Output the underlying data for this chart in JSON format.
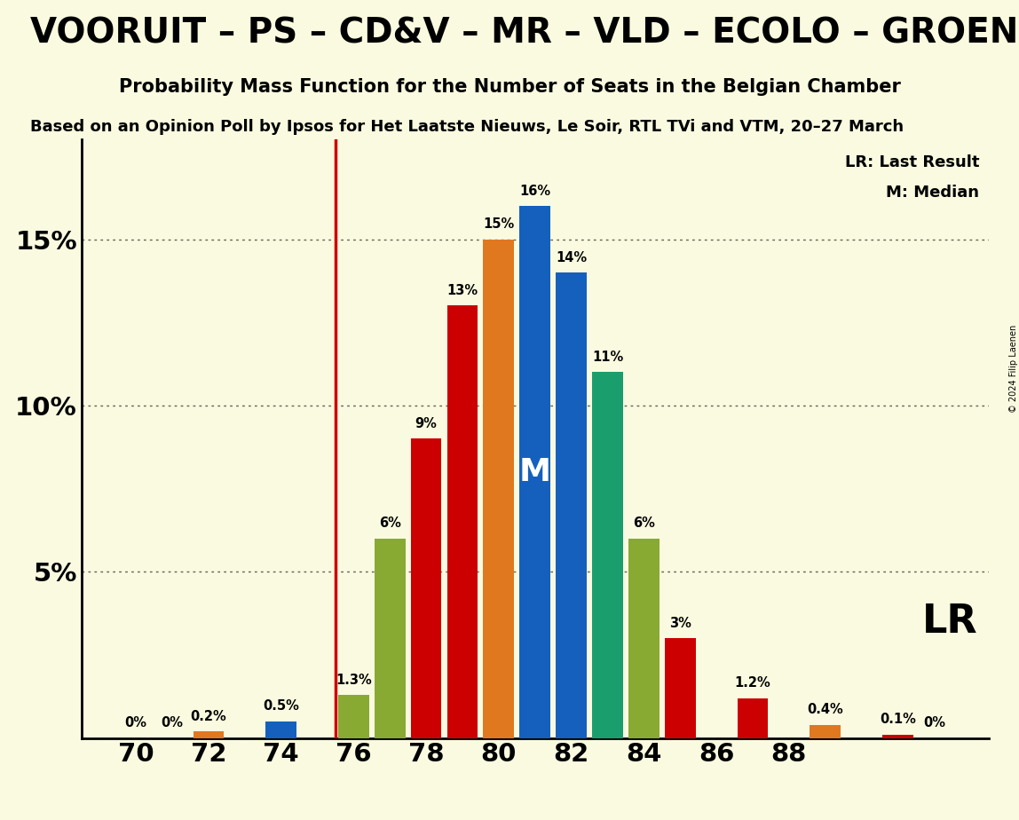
{
  "all_bars": [
    {
      "seat": 70,
      "prob": 0.0,
      "color": "#E07820",
      "label": "0%"
    },
    {
      "seat": 71,
      "prob": 0.0,
      "color": "#1560BD",
      "label": "0%"
    },
    {
      "seat": 72,
      "prob": 0.2,
      "color": "#E07820",
      "label": "0.2%"
    },
    {
      "seat": 73,
      "prob": 0.0,
      "color": "#1560BD",
      "label": ""
    },
    {
      "seat": 74,
      "prob": 0.5,
      "color": "#1560BD",
      "label": "0.5%"
    },
    {
      "seat": 75,
      "prob": 0.0,
      "color": "#88AA33",
      "label": ""
    },
    {
      "seat": 76,
      "prob": 1.3,
      "color": "#88AA33",
      "label": "1.3%"
    },
    {
      "seat": 77,
      "prob": 6.0,
      "color": "#88AA33",
      "label": "6%"
    },
    {
      "seat": 78,
      "prob": 9.0,
      "color": "#CC0000",
      "label": "9%"
    },
    {
      "seat": 79,
      "prob": 13.0,
      "color": "#CC0000",
      "label": "13%"
    },
    {
      "seat": 80,
      "prob": 15.0,
      "color": "#E07820",
      "label": "15%"
    },
    {
      "seat": 81,
      "prob": 16.0,
      "color": "#1560BD",
      "label": "16%"
    },
    {
      "seat": 82,
      "prob": 14.0,
      "color": "#1560BD",
      "label": "14%"
    },
    {
      "seat": 83,
      "prob": 11.0,
      "color": "#1A9E6E",
      "label": "11%"
    },
    {
      "seat": 84,
      "prob": 6.0,
      "color": "#88AA33",
      "label": "6%"
    },
    {
      "seat": 85,
      "prob": 3.0,
      "color": "#CC0000",
      "label": "3%"
    },
    {
      "seat": 86,
      "prob": 0.0,
      "color": "#E07820",
      "label": ""
    },
    {
      "seat": 87,
      "prob": 1.2,
      "color": "#CC0000",
      "label": "1.2%"
    },
    {
      "seat": 88,
      "prob": 0.0,
      "color": "#1560BD",
      "label": ""
    },
    {
      "seat": 89,
      "prob": 0.4,
      "color": "#E07820",
      "label": "0.4%"
    },
    {
      "seat": 90,
      "prob": 0.0,
      "color": "#CC0000",
      "label": ""
    },
    {
      "seat": 91,
      "prob": 0.1,
      "color": "#CC0000",
      "label": "0.1%"
    },
    {
      "seat": 92,
      "prob": 0.0,
      "color": "#1560BD",
      "label": "0%"
    }
  ],
  "zero_label_bars": [
    70,
    71,
    92
  ],
  "lr_line_x": 75.5,
  "median_seat": 81,
  "median_label": "M",
  "title1": "VOORUIT – PS – CD&V – MR – VLD – ECOLO – GROEN",
  "title2": "Probability Mass Function for the Number of Seats in the Belgian Chamber",
  "subtitle": "Based on an Opinion Poll by Ipsos for Het Laatste Nieuws, Le Soir, RTL TVi and VTM, 20–27 March",
  "xlabel_ticks": [
    70,
    72,
    74,
    76,
    78,
    80,
    82,
    84,
    86,
    88
  ],
  "lr_annotation": "LR: Last Result",
  "m_annotation": "M: Median",
  "lr_label": "LR",
  "background_color": "#FAFAE0",
  "lr_color": "#CC0000",
  "copyright": "© 2024 Filip Laenen",
  "xlim": [
    68.5,
    93.5
  ],
  "ylim": [
    0,
    18
  ],
  "bar_width": 0.85
}
